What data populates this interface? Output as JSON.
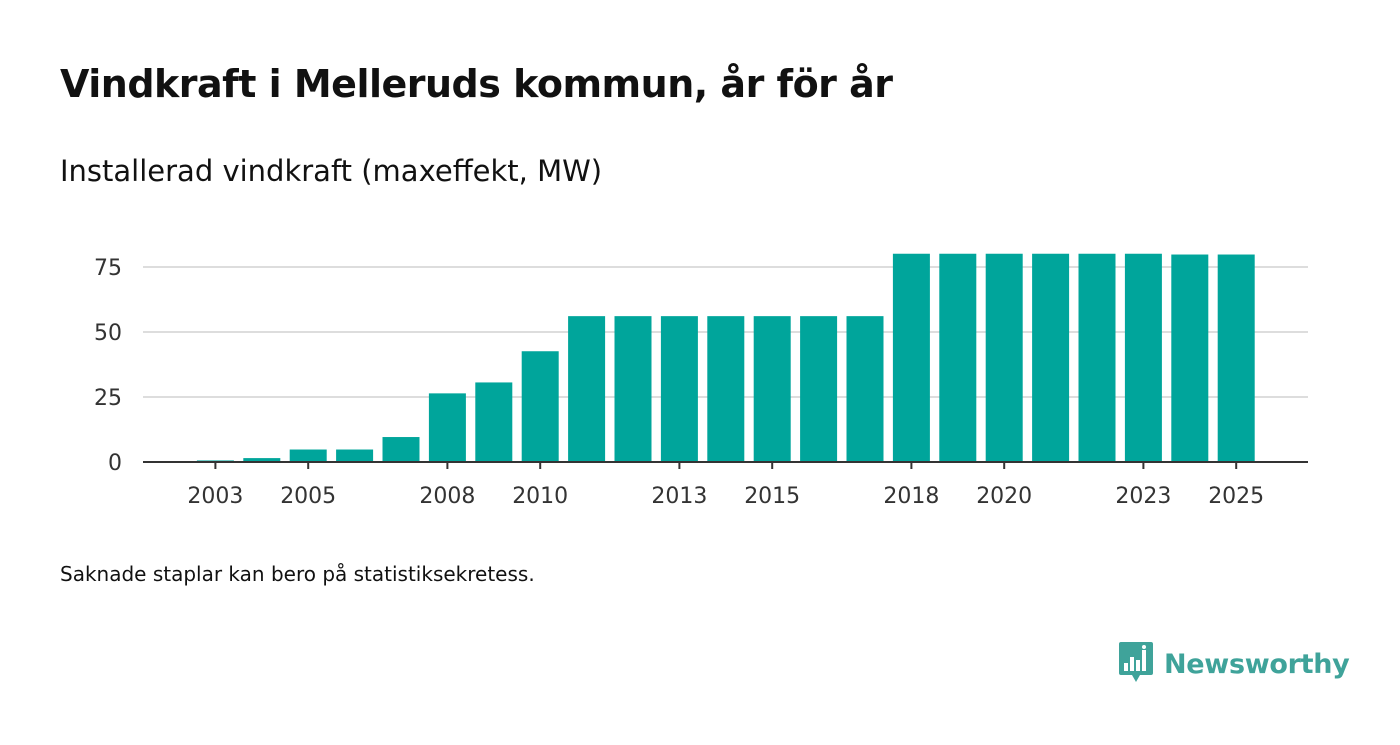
{
  "chart_data": {
    "type": "bar",
    "title": "Vindkraft i Melleruds kommun, år för år",
    "subtitle": "Installerad vindkraft (maxeffekt, MW)",
    "xlabel": "",
    "ylabel": "",
    "categories": [
      2002,
      2003,
      2004,
      2005,
      2006,
      2007,
      2008,
      2009,
      2010,
      2011,
      2012,
      2013,
      2014,
      2015,
      2016,
      2017,
      2018,
      2019,
      2020,
      2021,
      2022,
      2023,
      2024,
      2025
    ],
    "values": [
      null,
      0.6,
      1.5,
      4.8,
      4.8,
      9.6,
      26.4,
      30.6,
      42.6,
      56.1,
      56.1,
      56.1,
      56.1,
      56.1,
      56.1,
      56.1,
      80.1,
      80.1,
      80.1,
      80.1,
      80.1,
      80.1,
      79.8,
      79.8
    ],
    "ylim": [
      0,
      80
    ],
    "y_ticks": [
      0,
      25,
      50,
      75
    ],
    "x_tick_labels": [
      2003,
      2005,
      2008,
      2010,
      2013,
      2015,
      2018,
      2020,
      2023,
      2025
    ],
    "bar_color": "#00a59b",
    "grid": true
  },
  "footnote": "Saknade staplar kan bero på statistiksekretess.",
  "brand": {
    "name": "Newsworthy",
    "color": "#3fa39a",
    "icon": "bar-chart-speech-bubble-icon"
  }
}
